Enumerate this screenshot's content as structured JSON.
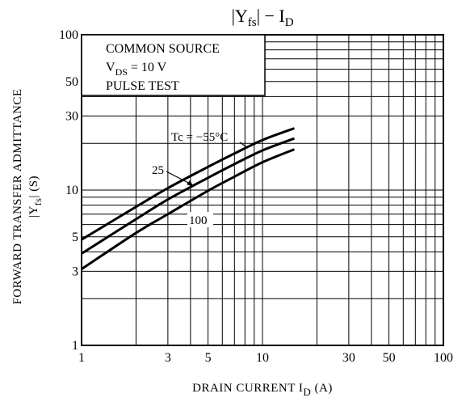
{
  "chart_data": {
    "type": "line",
    "title": {
      "parts": [
        {
          "text": "|Y",
          "sub": "fs"
        },
        {
          "text": "| − I",
          "sub": "D"
        }
      ]
    },
    "xlabel": {
      "main": "DRAIN CURRENT  I",
      "sub": "D",
      "unit": "  (A)"
    },
    "ylabel": {
      "line1": "FORWARD TRANSFER ADMITTANCE",
      "line2_pre": "|Y",
      "line2_sub": "fs",
      "line2_post": "|  (S)"
    },
    "xscale": "log",
    "yscale": "log",
    "xlim": [
      1,
      100
    ],
    "ylim": [
      1,
      100
    ],
    "grid": true,
    "x_gridlines": [
      1,
      2,
      3,
      4,
      5,
      6,
      7,
      8,
      9,
      10,
      20,
      30,
      40,
      50,
      60,
      70,
      80,
      90,
      100
    ],
    "y_gridlines": [
      1,
      2,
      3,
      4,
      5,
      6,
      7,
      8,
      9,
      10,
      20,
      30,
      40,
      50,
      60,
      70,
      80,
      90,
      100
    ],
    "x_ticks": [
      {
        "value": 1,
        "label": "1"
      },
      {
        "value": 3,
        "label": "3"
      },
      {
        "value": 5,
        "label": "5"
      },
      {
        "value": 10,
        "label": "10"
      },
      {
        "value": 30,
        "label": "30"
      },
      {
        "value": 50,
        "label": "50"
      },
      {
        "value": 100,
        "label": "100"
      }
    ],
    "y_ticks": [
      {
        "value": 1,
        "label": "1"
      },
      {
        "value": 3,
        "label": "3"
      },
      {
        "value": 5,
        "label": "5"
      },
      {
        "value": 10,
        "label": "10"
      },
      {
        "value": 30,
        "label": "30"
      },
      {
        "value": 50,
        "label": "50"
      },
      {
        "value": 100,
        "label": "100"
      }
    ],
    "conditions": [
      {
        "text": "COMMON SOURCE"
      },
      {
        "pre": "V",
        "sub": "DS",
        "post": " = 10 V"
      },
      {
        "text": "PULSE TEST"
      }
    ],
    "series": [
      {
        "name": "Tc = −55°C",
        "x": [
          1,
          2,
          3,
          5,
          7,
          10,
          15
        ],
        "y": [
          4.8,
          7.8,
          10.3,
          14.1,
          17.2,
          21.0,
          25.0
        ]
      },
      {
        "name": "25",
        "x": [
          1,
          2,
          3,
          5,
          7,
          10,
          15
        ],
        "y": [
          3.9,
          6.5,
          8.7,
          12.0,
          14.7,
          18.0,
          21.5
        ]
      },
      {
        "name": "100",
        "x": [
          1,
          2,
          3,
          5,
          7,
          10,
          15
        ],
        "y": [
          3.1,
          5.3,
          7.0,
          9.9,
          12.2,
          15.1,
          18.3
        ]
      }
    ],
    "curve_labels": [
      {
        "series": "Tc = −55°C",
        "text": "Tc = −55°C"
      },
      {
        "series": "25",
        "text": "25"
      },
      {
        "series": "100",
        "text": "100"
      }
    ]
  }
}
